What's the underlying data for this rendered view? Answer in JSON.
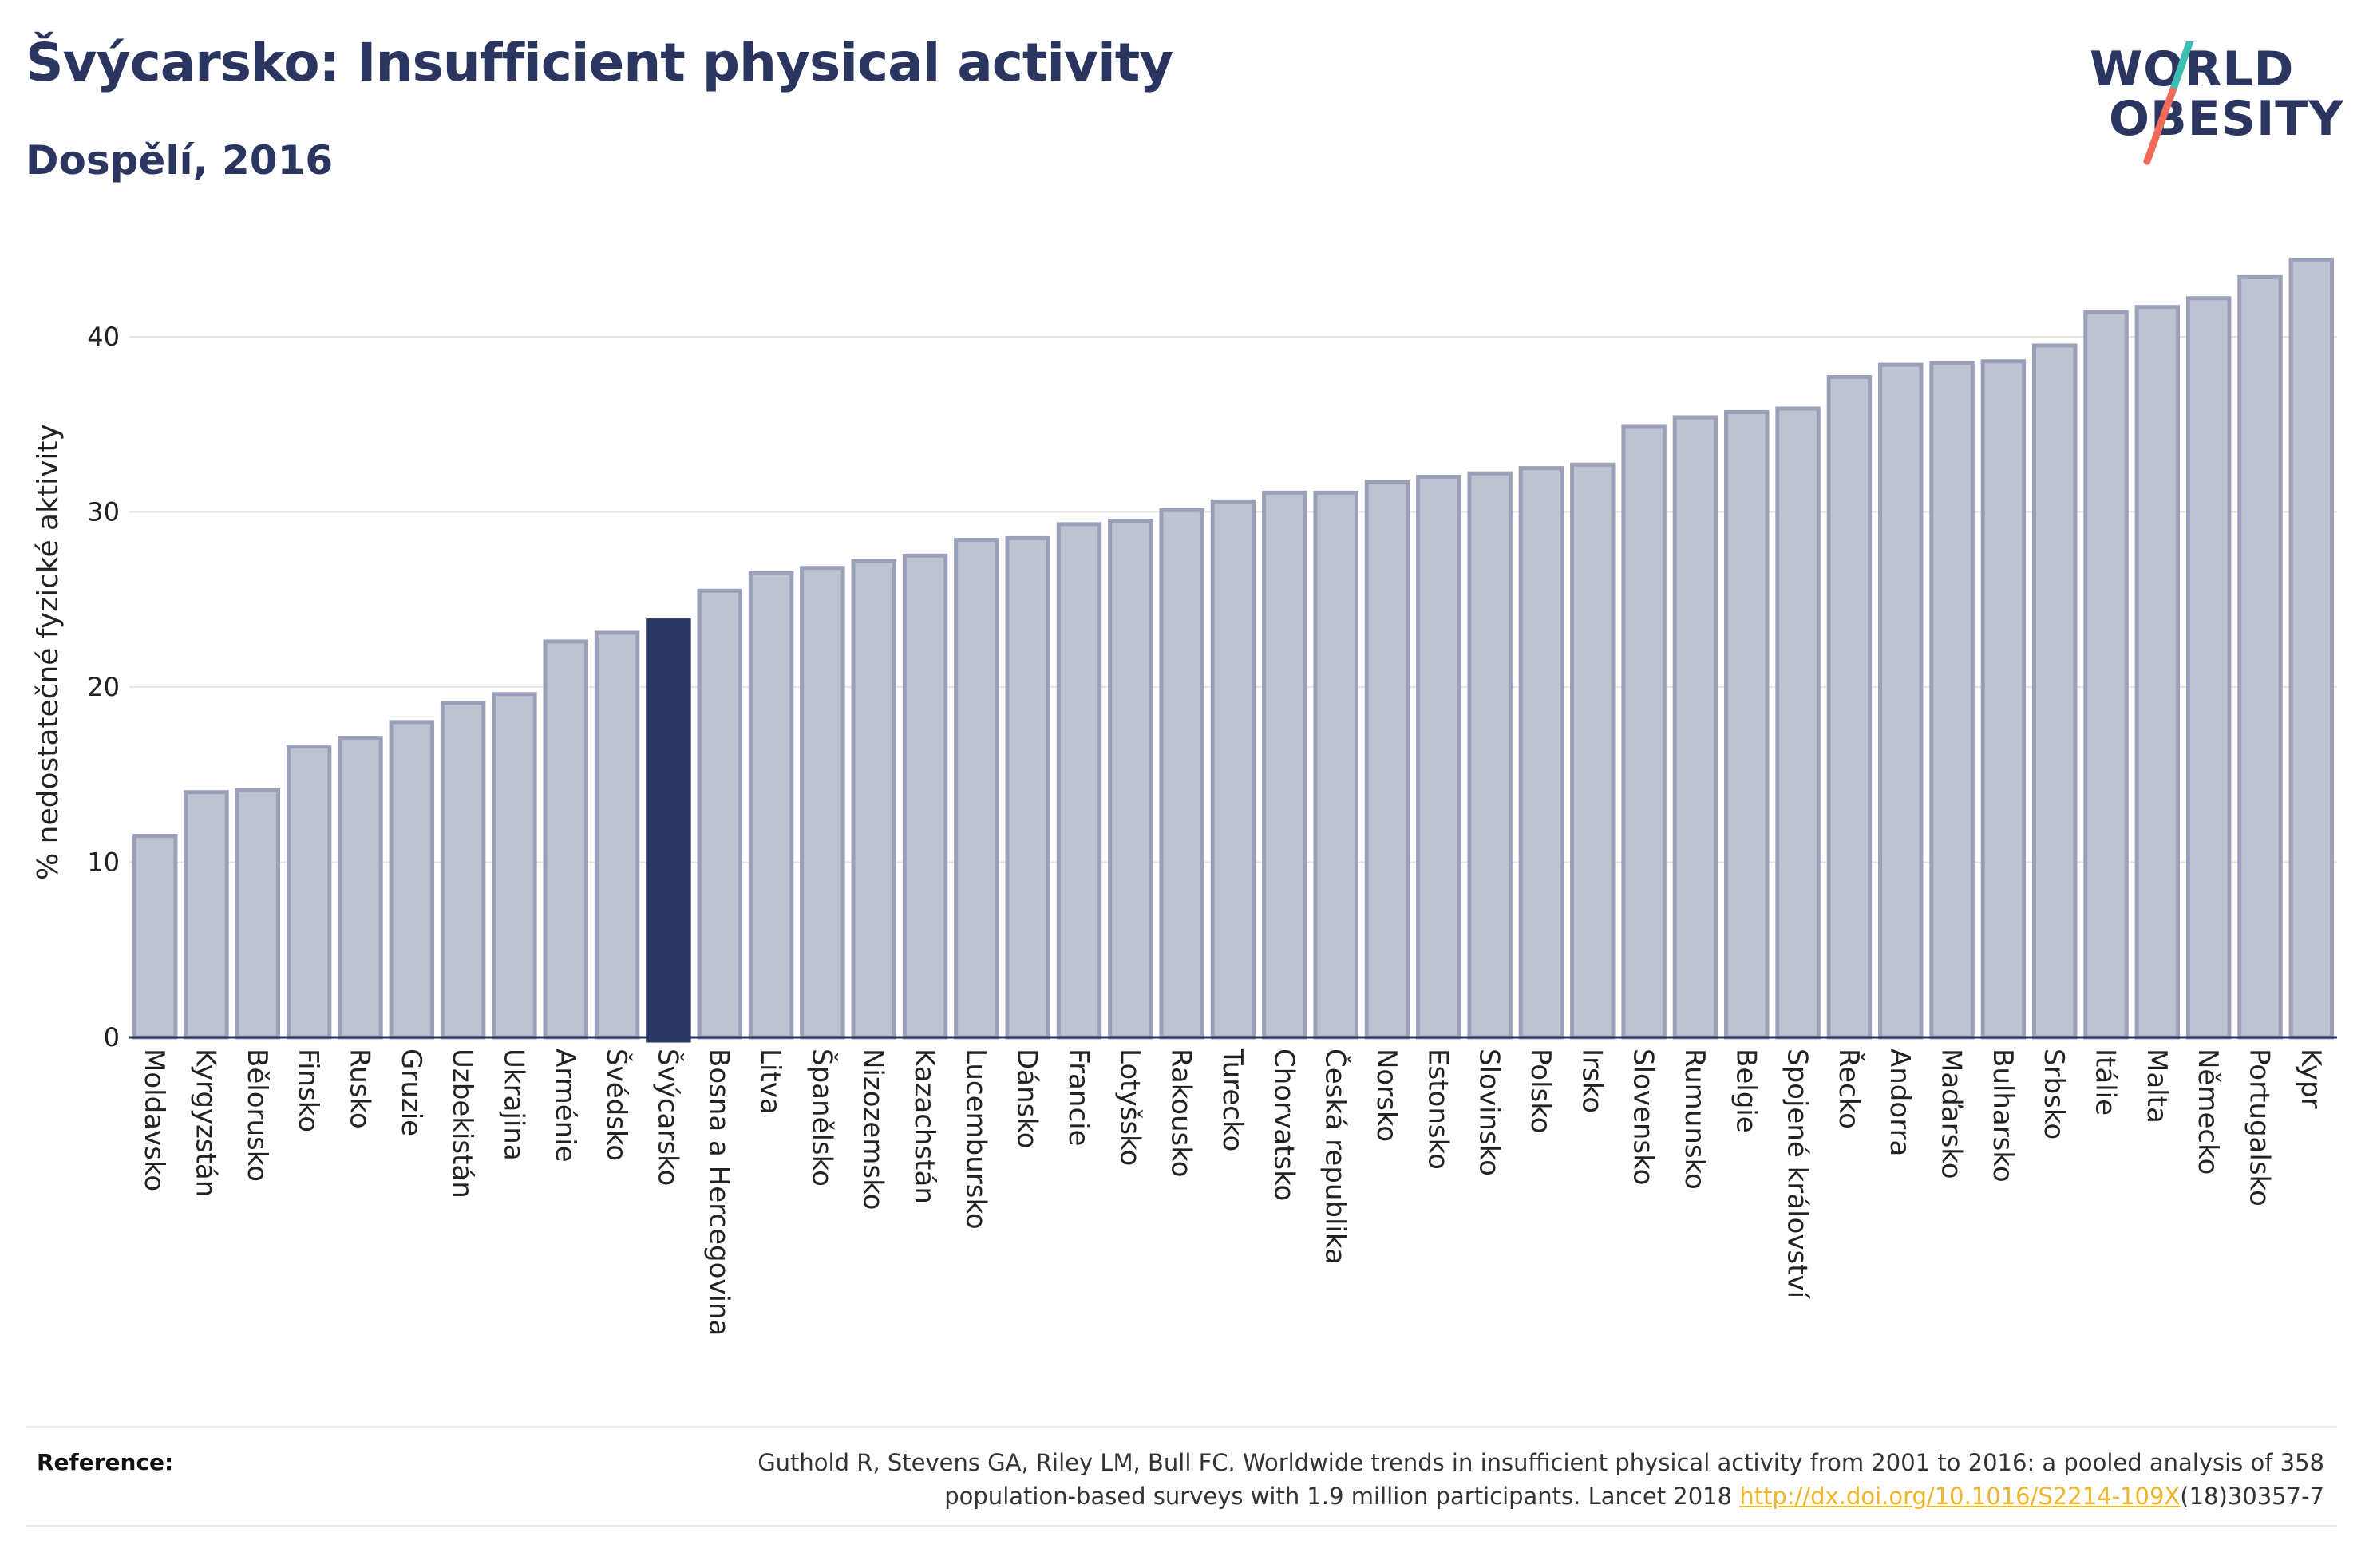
{
  "header": {
    "title": "Švýcarsko: Insufficient physical activity",
    "subtitle": "Dospělí, 2016"
  },
  "logo": {
    "line1": "WORLD",
    "line2": "OBESITY",
    "slash_colors": [
      "#3bbfb3",
      "#f06b5a"
    ]
  },
  "colors": {
    "bar": "#bfc3d0",
    "bar_stroke": "#9aa0b8",
    "highlight": "#2a3560",
    "axis": "#2a3560",
    "grid": "#e6e6e6"
  },
  "chart_data": {
    "type": "bar",
    "title": "Švýcarsko: Insufficient physical activity",
    "subtitle": "Dospělí, 2016",
    "ylabel": "% nedostatečné fyzické aktivity",
    "xlabel": "",
    "ylim": [
      0,
      45
    ],
    "yticks": [
      0,
      10,
      20,
      30,
      40
    ],
    "grid": true,
    "highlight": "Švýcarsko",
    "categories": [
      "Moldavsko",
      "Kyrgyzstán",
      "Bělorusko",
      "Finsko",
      "Rusko",
      "Gruzie",
      "Uzbekistán",
      "Ukrajina",
      "Arménie",
      "Švédsko",
      "Švýcarsko",
      "Bosna a Hercegovina",
      "Litva",
      "Španělsko",
      "Nizozemsko",
      "Kazachstán",
      "Lucembursko",
      "Dánsko",
      "Francie",
      "Lotyšsko",
      "Rakousko",
      "Turecko",
      "Chorvatsko",
      "Česká republika",
      "Norsko",
      "Estonsko",
      "Slovinsko",
      "Polsko",
      "Irsko",
      "Slovensko",
      "Rumunsko",
      "Belgie",
      "Spojené království",
      "Řecko",
      "Andorra",
      "Maďarsko",
      "Bulharsko",
      "Srbsko",
      "Itálie",
      "Malta",
      "Německo",
      "Portugalsko",
      "Kypr"
    ],
    "values": [
      11.5,
      14.0,
      14.1,
      16.6,
      17.1,
      18.0,
      19.1,
      19.6,
      22.6,
      23.1,
      23.8,
      25.5,
      26.5,
      26.8,
      27.2,
      27.5,
      28.4,
      28.5,
      29.3,
      29.5,
      30.1,
      30.6,
      31.1,
      31.1,
      31.7,
      32.0,
      32.2,
      32.5,
      32.7,
      34.9,
      35.4,
      35.7,
      35.9,
      37.7,
      38.4,
      38.5,
      38.6,
      39.5,
      41.4,
      41.7,
      42.2,
      43.4,
      44.4
    ]
  },
  "reference": {
    "label": "Reference:",
    "text_line1": "Guthold R, Stevens GA, Riley LM, Bull FC. Worldwide trends in insufficient physical activity from 2001 to 2016: a pooled analysis of 358",
    "text_line2_prefix": "population-based surveys with 1.9 million participants. Lancet 2018 ",
    "link": "http://dx.doi.org/10.1016/S2214-109X",
    "text_line2_suffix": "(18)30357-7"
  }
}
